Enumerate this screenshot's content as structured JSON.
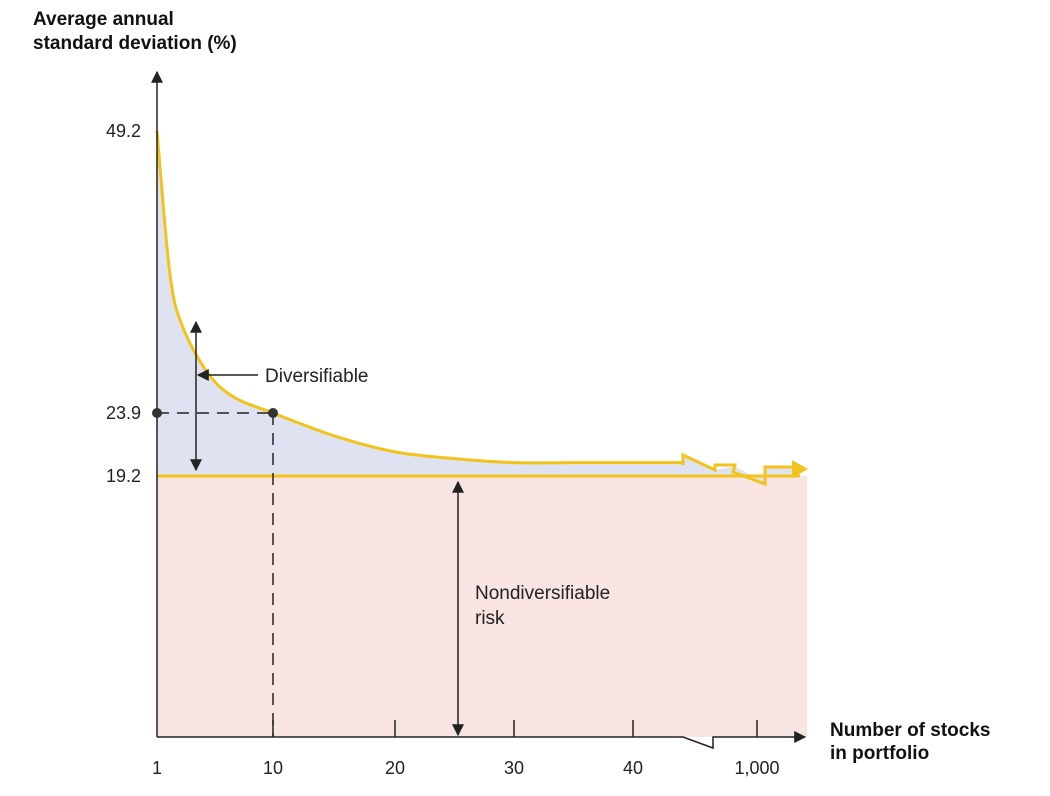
{
  "chart_data": {
    "type": "line",
    "ylabel_lines": [
      "Average annual",
      "standard deviation (%)"
    ],
    "xlabel_lines": [
      "Number of stocks",
      "in portfolio"
    ],
    "x_ticks": [
      "1",
      "10",
      "20",
      "30",
      "40",
      "1,000"
    ],
    "y_ticks": [
      "19.2",
      "23.9",
      "49.2"
    ],
    "series": [
      {
        "x": [
          1,
          2,
          3,
          5,
          7,
          10,
          15,
          20,
          25,
          30,
          35,
          40,
          44
        ],
        "y": [
          49.2,
          36.4,
          31.6,
          27.4,
          25.3,
          23.9,
          22.2,
          21.0,
          20.5,
          20.2,
          20.2,
          20.2,
          20.2
        ]
      }
    ],
    "asymptote": 19.2,
    "highlight_point": {
      "x": 10,
      "y": 23.9
    },
    "annotations": {
      "diversifiable": "Diversifiable",
      "nondiversifiable_lines": [
        "Nondiversifiable",
        "risk"
      ]
    },
    "axis_break": "between 40 and 1,000",
    "colors": {
      "curve": "#f3c21b",
      "diversifiable_fill": "#dfe3f1",
      "nondiversifiable_fill": "#f9e4e4"
    }
  }
}
